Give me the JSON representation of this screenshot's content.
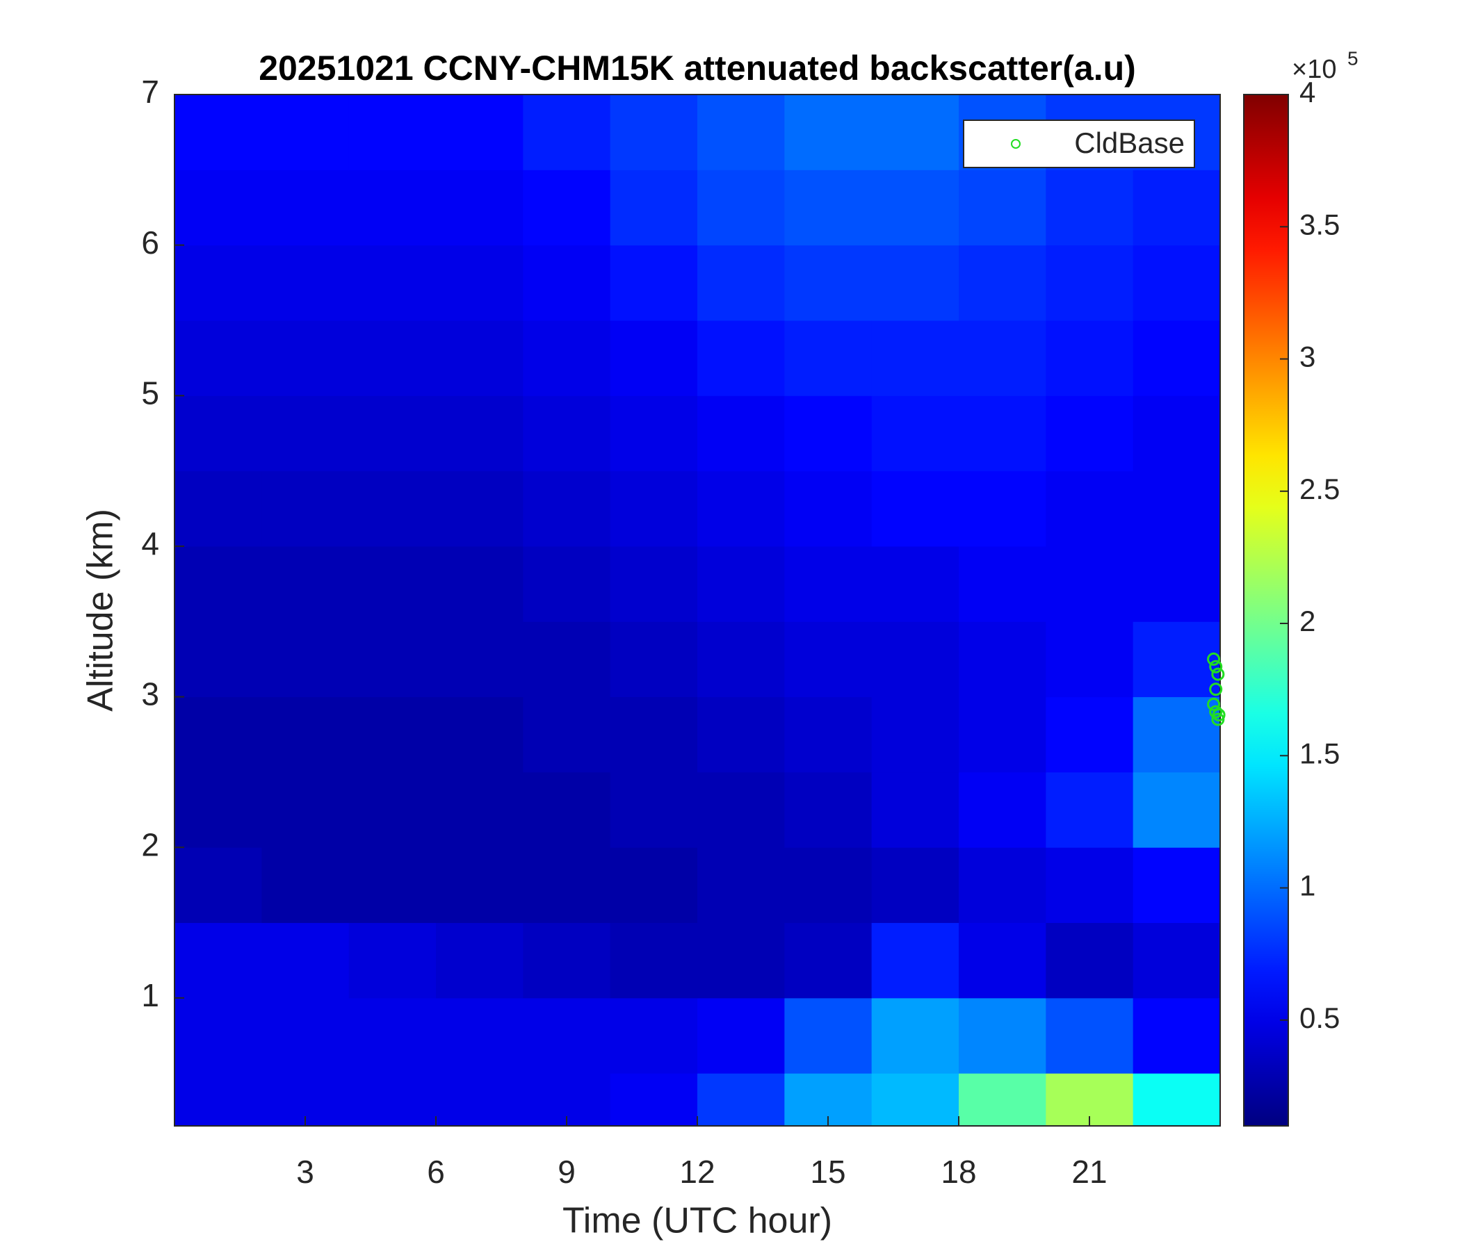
{
  "chart_data": {
    "type": "heatmap",
    "title": "20251021 CCNY-CHM15K attenuated backscatter(a.u)",
    "x_label": "Time (UTC hour)",
    "y_label": "Altitude (km)",
    "x": [
      1,
      3,
      5,
      7,
      9,
      11,
      13,
      15,
      17,
      19,
      21,
      23
    ],
    "y": [
      0.25,
      0.75,
      1.25,
      1.75,
      2.25,
      2.75,
      3.25,
      3.75,
      4.25,
      4.75,
      5.25,
      5.75,
      6.25,
      6.75
    ],
    "values": [
      [
        0.5,
        0.5,
        0.5,
        0.5,
        0.5,
        0.55,
        0.8,
        1.2,
        1.3,
        1.9,
        2.2,
        1.6
      ],
      [
        0.5,
        0.5,
        0.5,
        0.5,
        0.5,
        0.5,
        0.55,
        0.9,
        1.2,
        1.1,
        0.9,
        0.6
      ],
      [
        0.5,
        0.5,
        0.45,
        0.4,
        0.35,
        0.3,
        0.3,
        0.35,
        0.7,
        0.5,
        0.35,
        0.45
      ],
      [
        0.3,
        0.25,
        0.25,
        0.25,
        0.25,
        0.25,
        0.3,
        0.3,
        0.35,
        0.45,
        0.5,
        0.6
      ],
      [
        0.25,
        0.25,
        0.25,
        0.25,
        0.25,
        0.3,
        0.3,
        0.35,
        0.45,
        0.55,
        0.7,
        1.1
      ],
      [
        0.25,
        0.25,
        0.25,
        0.25,
        0.3,
        0.3,
        0.35,
        0.4,
        0.45,
        0.5,
        0.6,
        1.0
      ],
      [
        0.3,
        0.3,
        0.3,
        0.3,
        0.3,
        0.35,
        0.4,
        0.45,
        0.45,
        0.5,
        0.55,
        0.7
      ],
      [
        0.3,
        0.3,
        0.3,
        0.3,
        0.35,
        0.4,
        0.45,
        0.5,
        0.5,
        0.55,
        0.55,
        0.55
      ],
      [
        0.35,
        0.35,
        0.35,
        0.35,
        0.4,
        0.45,
        0.5,
        0.55,
        0.6,
        0.6,
        0.55,
        0.55
      ],
      [
        0.4,
        0.4,
        0.4,
        0.4,
        0.45,
        0.5,
        0.55,
        0.6,
        0.65,
        0.65,
        0.6,
        0.55
      ],
      [
        0.45,
        0.45,
        0.45,
        0.45,
        0.5,
        0.55,
        0.65,
        0.7,
        0.7,
        0.7,
        0.65,
        0.6
      ],
      [
        0.5,
        0.5,
        0.5,
        0.5,
        0.55,
        0.65,
        0.75,
        0.8,
        0.8,
        0.75,
        0.7,
        0.65
      ],
      [
        0.55,
        0.55,
        0.55,
        0.55,
        0.6,
        0.75,
        0.85,
        0.9,
        0.9,
        0.85,
        0.75,
        0.7
      ],
      [
        0.6,
        0.6,
        0.6,
        0.6,
        0.7,
        0.8,
        0.9,
        1.0,
        1.0,
        0.9,
        0.8,
        0.8
      ]
    ],
    "colormap": "jet",
    "xlim": [
      0,
      24
    ],
    "xticks": [
      3,
      6,
      9,
      12,
      15,
      18,
      21
    ],
    "ylim": [
      0.15,
      7
    ],
    "yticks": [
      1,
      2,
      3,
      4,
      5,
      6,
      7
    ],
    "clim": [
      0.1,
      4
    ],
    "cticks": [
      0.5,
      1,
      1.5,
      2,
      2.5,
      3,
      3.5,
      4
    ],
    "colorbar_exponent": {
      "base": "×10",
      "power": "5"
    },
    "overlay": {
      "type": "scatter",
      "name": "CldBase",
      "color": "#22dd22",
      "x": [
        23.85,
        23.9,
        23.95,
        23.9,
        23.85,
        23.9,
        23.95,
        23.97
      ],
      "y": [
        3.25,
        3.2,
        3.15,
        3.05,
        2.95,
        2.9,
        2.85,
        2.88
      ]
    },
    "legend_position": "upper right"
  }
}
